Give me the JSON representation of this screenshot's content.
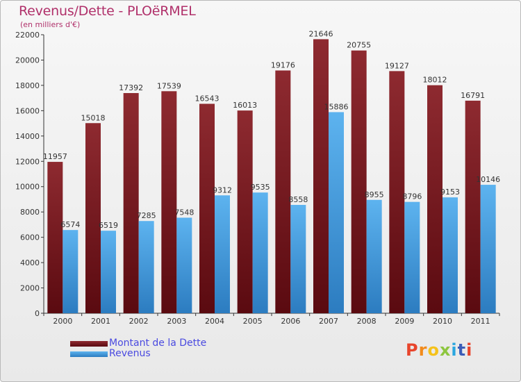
{
  "chart_data": {
    "type": "bar",
    "title": "Revenus/Dette - PLOëRMEL",
    "subtitle": "(en milliers d'€)",
    "categories": [
      "2000",
      "2001",
      "2002",
      "2003",
      "2004",
      "2005",
      "2006",
      "2007",
      "2008",
      "2009",
      "2010",
      "2011"
    ],
    "series": [
      {
        "name": "Montant de la Dette",
        "color": "#7a1c22",
        "values": [
          11957,
          15018,
          17392,
          17539,
          16543,
          16013,
          19176,
          21646,
          20755,
          19127,
          18012,
          16791
        ]
      },
      {
        "name": "Revenus",
        "color": "#4aa3e6",
        "values": [
          6574,
          6519,
          7285,
          7548,
          9312,
          9535,
          8558,
          15886,
          8955,
          8796,
          9153,
          10146
        ]
      }
    ],
    "ylim": [
      0,
      22000
    ],
    "yticks": [
      0,
      2000,
      4000,
      6000,
      8000,
      10000,
      12000,
      14000,
      16000,
      18000,
      20000,
      22000
    ],
    "xlabel": "",
    "ylabel": "",
    "grid": false,
    "legend_position": "bottom-left"
  },
  "legend": [
    {
      "label": "Montant de la Dette",
      "color": "#7a1c22"
    },
    {
      "label": "Revenus",
      "color": "#4aa3e6"
    }
  ],
  "logo": {
    "text": "Proxiti",
    "colors": [
      "#e8452c",
      "#f28b1c",
      "#f5c21b",
      "#8dc63f",
      "#2aa6df",
      "#3b5db8",
      "#e8452c"
    ]
  }
}
